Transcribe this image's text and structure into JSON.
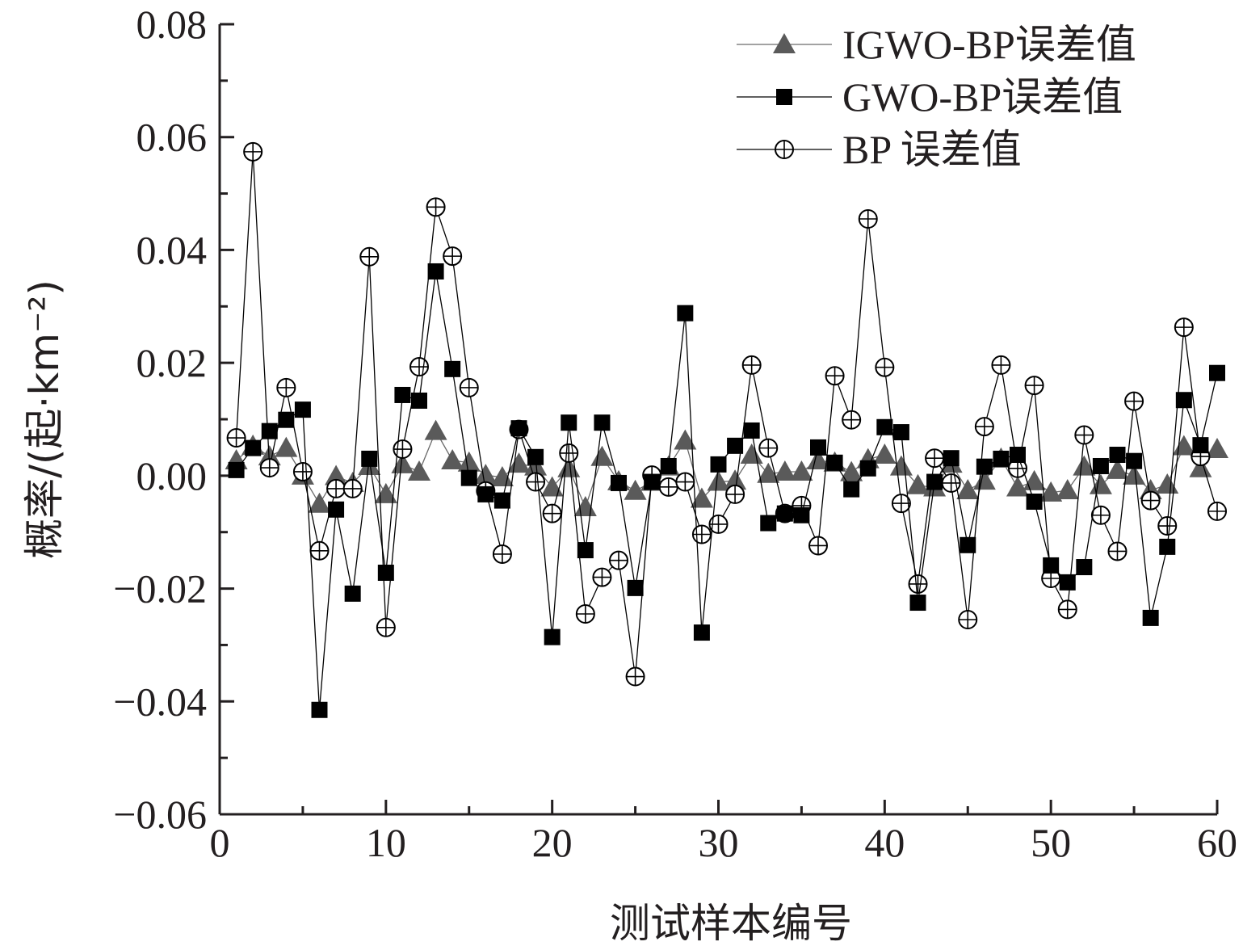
{
  "chart_data": {
    "type": "line",
    "title": "",
    "xlabel": "测试样本编号",
    "ylabel": "概率/(起·km⁻²)",
    "xlim": [
      0,
      60
    ],
    "ylim": [
      -0.06,
      0.08
    ],
    "x_ticks": [
      "0",
      "10",
      "20",
      "30",
      "40",
      "50",
      "60"
    ],
    "x_tick_values": [
      0,
      10,
      20,
      30,
      40,
      50,
      60
    ],
    "y_ticks": [
      "0.08",
      "0.06",
      "0.04",
      "0.02",
      "0.00",
      "−0.02",
      "−0.04",
      "−0.06"
    ],
    "y_tick_values": [
      0.08,
      0.06,
      0.04,
      0.02,
      0.0,
      -0.02,
      -0.04,
      -0.06
    ],
    "grid": false,
    "legend_position": "top-right",
    "x": [
      1,
      2,
      3,
      4,
      5,
      6,
      7,
      8,
      9,
      10,
      11,
      12,
      13,
      14,
      15,
      16,
      17,
      18,
      19,
      20,
      21,
      22,
      23,
      24,
      25,
      26,
      27,
      28,
      29,
      30,
      31,
      32,
      33,
      34,
      35,
      36,
      37,
      38,
      39,
      40,
      41,
      42,
      43,
      44,
      45,
      46,
      47,
      48,
      49,
      50,
      51,
      52,
      53,
      54,
      55,
      56,
      57,
      58,
      59,
      60
    ],
    "series": [
      {
        "name": "IGWO-BP误差值",
        "marker": "triangle",
        "color": "#5a5a5a",
        "values": [
          0.0027,
          0.0053,
          0.0034,
          0.0049,
          0.0,
          -0.005,
          -0.0001,
          -0.0013,
          0.0017,
          -0.0033,
          0.002,
          0.0007,
          0.0079,
          0.0027,
          0.0023,
          0.0001,
          -0.0003,
          0.0021,
          0.0016,
          -0.0021,
          0.0013,
          -0.0056,
          0.0033,
          -0.001,
          -0.0027,
          -0.0011,
          0.0016,
          0.0062,
          -0.0041,
          -0.0011,
          -0.0009,
          0.0037,
          0.0003,
          0.0007,
          0.0007,
          0.0027,
          0.0023,
          0.0006,
          0.0029,
          0.0037,
          0.0016,
          -0.0017,
          -0.0021,
          0.0021,
          -0.0026,
          -0.0009,
          0.003,
          -0.0021,
          -0.001,
          -0.003,
          -0.0026,
          0.0016,
          -0.0017,
          0.001,
          0.0,
          -0.0026,
          -0.0016,
          0.0052,
          0.0013,
          0.0047
        ]
      },
      {
        "name": "GWO-BP误差值",
        "marker": "square",
        "color": "#000000",
        "values": [
          0.001,
          0.0049,
          0.0079,
          0.0099,
          0.0117,
          -0.0415,
          -0.006,
          -0.0209,
          0.003,
          -0.0172,
          0.0143,
          0.0133,
          0.0362,
          0.0189,
          -0.0004,
          -0.0033,
          -0.0044,
          0.0084,
          0.0033,
          -0.0286,
          0.0094,
          -0.0132,
          0.0094,
          -0.0013,
          -0.0199,
          -0.0011,
          0.0017,
          0.0288,
          -0.0278,
          0.002,
          0.0053,
          0.008,
          -0.0084,
          -0.0067,
          -0.007,
          0.005,
          0.0023,
          -0.0024,
          0.0013,
          0.0086,
          0.0077,
          -0.0225,
          -0.0011,
          0.0031,
          -0.0123,
          0.0016,
          0.003,
          0.0037,
          -0.0046,
          -0.0159,
          -0.0189,
          -0.0162,
          0.0017,
          0.0037,
          0.0026,
          -0.0252,
          -0.0126,
          0.0134,
          0.0054,
          0.0182
        ]
      },
      {
        "name": "BP 误差值",
        "marker": "circle-plus",
        "color": "#000000",
        "values": [
          0.0067,
          0.0574,
          0.0014,
          0.0156,
          0.0007,
          -0.0133,
          -0.0023,
          -0.0023,
          0.0388,
          -0.0269,
          0.0047,
          0.0193,
          0.0476,
          0.0389,
          0.0156,
          -0.0027,
          -0.0139,
          0.0082,
          -0.0011,
          -0.0067,
          0.004,
          -0.0245,
          -0.018,
          -0.015,
          -0.0356,
          0.0001,
          -0.002,
          -0.0011,
          -0.0104,
          -0.0086,
          -0.0033,
          0.0196,
          0.0049,
          -0.0067,
          -0.0053,
          -0.0124,
          0.0177,
          0.0099,
          0.0455,
          0.0192,
          -0.0049,
          -0.0192,
          0.0031,
          -0.0013,
          -0.0255,
          0.0087,
          0.0196,
          0.0013,
          0.016,
          -0.0182,
          -0.0237,
          0.0072,
          -0.007,
          -0.0134,
          0.0132,
          -0.0044,
          -0.0089,
          0.0263,
          0.0034,
          -0.0063
        ]
      }
    ]
  }
}
